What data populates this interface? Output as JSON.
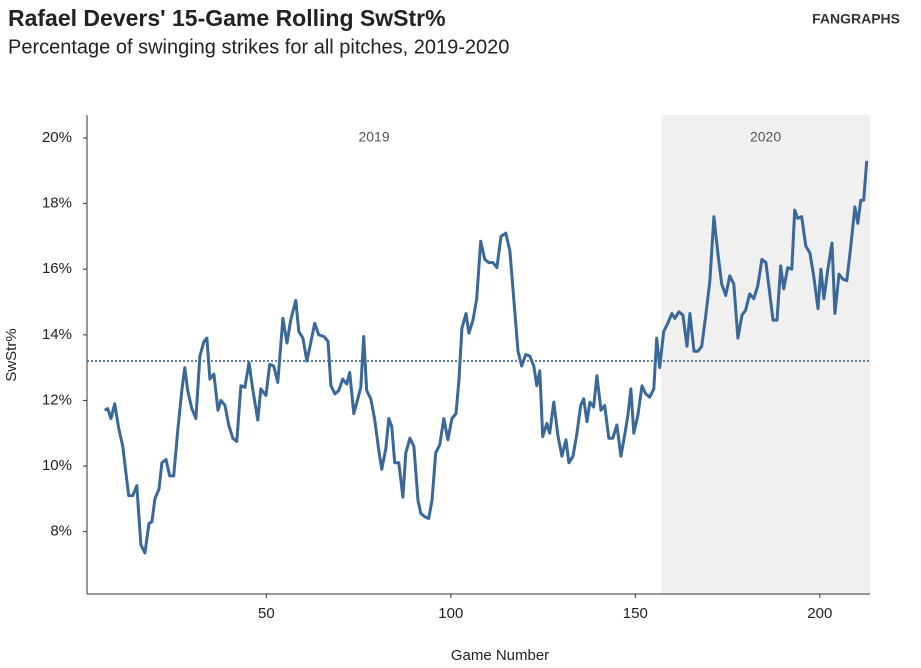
{
  "chart_data": {
    "type": "line",
    "title": "Rafael Devers' 15-Game Rolling SwStr%",
    "subtitle": "Percentage of swinging strikes for all pitches, 2019-2020",
    "logo": "FANGRAPHS",
    "x_label": "Game Number",
    "y_label": "SwStr%",
    "xlim": [
      1.4,
      213.6
    ],
    "xticks": [
      50,
      100,
      150,
      200
    ],
    "ylim": [
      6.1,
      20.7
    ],
    "yticks": [
      {
        "value": 8,
        "label": "8%"
      },
      {
        "value": 10,
        "label": "10%"
      },
      {
        "value": 12,
        "label": "12%"
      },
      {
        "value": 14,
        "label": "14%"
      },
      {
        "value": 16,
        "label": "16%"
      },
      {
        "value": 18,
        "label": "18%"
      },
      {
        "value": 20,
        "label": "20%"
      }
    ],
    "reference_line": 13.2,
    "seasons": [
      {
        "label": "2019",
        "start": 1.4
      },
      {
        "label": "2020",
        "start": 157
      }
    ],
    "series": [
      {
        "name": "SwStr%",
        "color": "#3a6898",
        "x": [
          6.2,
          7,
          7.9,
          8.9,
          10,
          11.1,
          11.9,
          12.7,
          13.8,
          14.9,
          16,
          17.1,
          18.2,
          19,
          19.8,
          20.9,
          21.7,
          22.8,
          23.8,
          24.9,
          26,
          27.1,
          27.9,
          28.7,
          29.8,
          30.9,
          32,
          33.1,
          33.9,
          34.7,
          35.8,
          36.9,
          37.7,
          38.8,
          39.8,
          40.9,
          42,
          43.1,
          44.2,
          45.3,
          46.3,
          47.7,
          48.5,
          49.9,
          50.9,
          52,
          53.1,
          54.5,
          55.6,
          56.6,
          58,
          58.8,
          59.9,
          61,
          62.1,
          63.1,
          64.2,
          65.6,
          66.7,
          67.5,
          68.6,
          69.6,
          70.7,
          71.8,
          72.6,
          73.7,
          74.8,
          75.6,
          76.4,
          77.2,
          78.3,
          79.4,
          80.5,
          81.3,
          82.4,
          83.2,
          84,
          84.8,
          85.9,
          87,
          87.8,
          88.9,
          90,
          91.1,
          91.9,
          93,
          94,
          94.9,
          95.9,
          97,
          98.1,
          99.2,
          100.3,
          101.4,
          102.2,
          103,
          104.1,
          104.9,
          106,
          107,
          108.1,
          109.2,
          110.3,
          111.4,
          112.5,
          113.6,
          114.9,
          116,
          117.1,
          118.2,
          119.2,
          120.3,
          121.4,
          122.5,
          123.3,
          124.1,
          124.9,
          126,
          126.8,
          127.9,
          129,
          130.1,
          131.2,
          132,
          133.1,
          134.1,
          135.2,
          136,
          136.9,
          137.7,
          138.7,
          139.6,
          140.7,
          141.7,
          142.8,
          143.9,
          145,
          146.1,
          147.2,
          148,
          148.8,
          149.6,
          150.7,
          151.8,
          152.8,
          153.9,
          155,
          155.8,
          156.6,
          157.7,
          158.8,
          159.9,
          160.7,
          161.8,
          162.9,
          164,
          164.8,
          165.9,
          167,
          168,
          169.1,
          170.2,
          171.3,
          172.4,
          173.4,
          174.5,
          175.6,
          176.7,
          177.8,
          178.9,
          179.9,
          181,
          182.1,
          183.2,
          184.3,
          185.4,
          186.4,
          187.3,
          188.4,
          189.4,
          190.2,
          191.3,
          192.4,
          193.2,
          194,
          195.1,
          196.2,
          197.3,
          198.4,
          199.5,
          200.3,
          201.1,
          202.2,
          203.3,
          204.1,
          205.2,
          206.2,
          207.3,
          208.4,
          209.5,
          210.3,
          211.1,
          211.9,
          212.7
        ],
        "values": [
          11.7,
          11.75,
          11.45,
          11.9,
          11.15,
          10.6,
          9.85,
          9.1,
          9.1,
          9.4,
          7.6,
          7.35,
          8.25,
          8.3,
          9,
          9.3,
          10.1,
          10.2,
          9.7,
          9.7,
          11.1,
          12.3,
          13,
          12.3,
          11.75,
          11.45,
          13.35,
          13.8,
          13.9,
          12.65,
          12.8,
          11.7,
          12,
          11.85,
          11.25,
          10.85,
          10.75,
          12.45,
          12.4,
          13.15,
          12.35,
          11.4,
          12.35,
          12.15,
          13.1,
          13.05,
          12.55,
          14.5,
          13.75,
          14.45,
          15.05,
          14.1,
          13.9,
          13.2,
          13.8,
          14.35,
          14,
          13.95,
          13.8,
          12.45,
          12.2,
          12.3,
          12.65,
          12.5,
          12.85,
          11.6,
          12.05,
          12.4,
          13.95,
          12.3,
          12.05,
          11.4,
          10.45,
          9.9,
          10.55,
          11.45,
          11.2,
          10.1,
          10.1,
          9.05,
          10.4,
          10.85,
          10.6,
          8.95,
          8.55,
          8.45,
          8.4,
          8.95,
          10.4,
          10.65,
          11.45,
          10.8,
          11.45,
          11.6,
          12.6,
          14.2,
          14.65,
          14.05,
          14.45,
          15.1,
          16.85,
          16.3,
          16.2,
          16.2,
          16.05,
          17,
          17.1,
          16.55,
          15.05,
          13.5,
          13.05,
          13.4,
          13.35,
          13.05,
          12.45,
          12.9,
          10.9,
          11.3,
          11,
          11.95,
          10.95,
          10.3,
          10.8,
          10.1,
          10.3,
          10.95,
          11.85,
          12.05,
          11.35,
          11.95,
          11.8,
          12.75,
          11.7,
          11.85,
          10.85,
          10.85,
          11.25,
          10.3,
          11,
          11.55,
          12.35,
          11,
          11.55,
          12.45,
          12.2,
          12.1,
          12.35,
          13.9,
          13,
          14.1,
          14.35,
          14.65,
          14.5,
          14.7,
          14.6,
          13.65,
          14.65,
          13.5,
          13.5,
          13.65,
          14.6,
          15.65,
          17.6,
          16.45,
          15.55,
          15.2,
          15.8,
          15.55,
          13.9,
          14.6,
          14.75,
          15.25,
          15.1,
          15.5,
          16.3,
          16.2,
          15.3,
          14.45,
          14.45,
          16.1,
          15.4,
          16.05,
          16,
          17.8,
          17.55,
          17.6,
          16.7,
          16.5,
          15.75,
          14.8,
          16,
          15.1,
          16,
          16.8,
          14.65,
          15.85,
          15.7,
          15.65,
          16.7,
          17.9,
          17.4,
          18.1,
          18.1,
          19.3
        ]
      }
    ]
  }
}
